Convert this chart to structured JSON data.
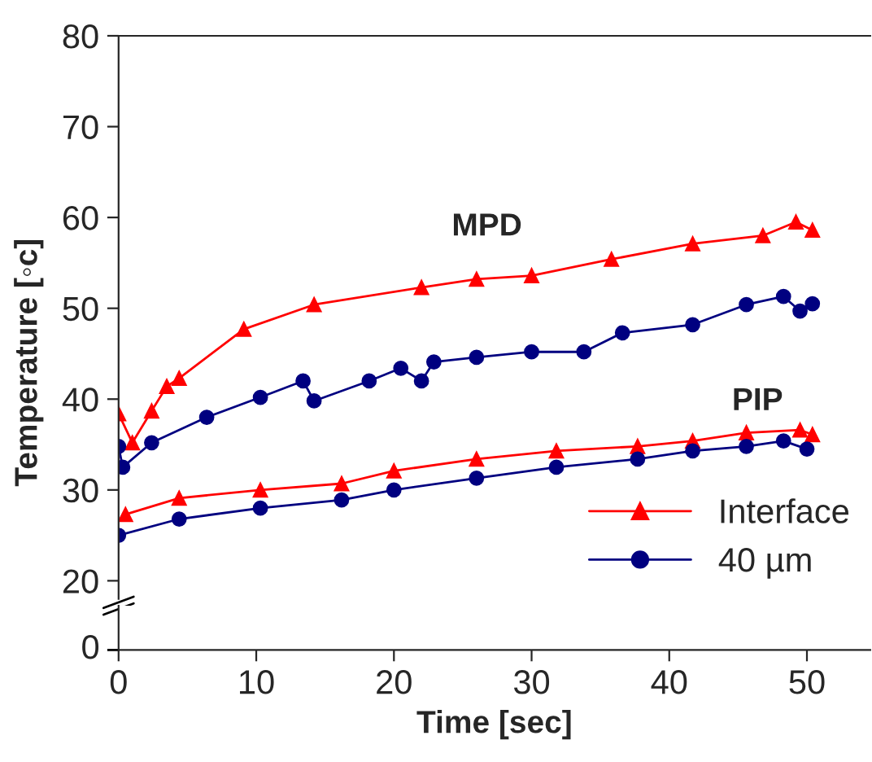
{
  "chart_data": {
    "type": "line",
    "xlabel": "Time [sec]",
    "ylabel": "Temperature [◦c]",
    "xlim": [
      0,
      54.6
    ],
    "xticks": [
      0,
      10,
      20,
      30,
      40,
      50
    ],
    "ylim": [
      18,
      80
    ],
    "yticks": [
      20,
      30,
      40,
      50,
      60,
      70,
      80
    ],
    "legend": "bottom right",
    "annotations": [
      "MPD",
      "PIP",
      "0"
    ],
    "series": [
      {
        "name": "Interface",
        "color": "#ff0000",
        "marker": "triangle",
        "x": [
          0,
          1,
          2.4,
          3.5,
          4.4,
          9.1,
          14.2,
          22,
          26,
          30,
          35.8,
          41.7,
          46.8,
          49.2,
          50.4
        ],
        "values": [
          38.4,
          35.2,
          38.7,
          41.4,
          42.3,
          47.7,
          50.4,
          52.3,
          53.2,
          53.6,
          55.4,
          57.1,
          58,
          59.5,
          58.6
        ]
      },
      {
        "name": "40 µm",
        "color": "#000080",
        "marker": "circle",
        "x": [
          0,
          0.3,
          2.4,
          6.4,
          10.3,
          13.4,
          14.2,
          18.2,
          20.5,
          22,
          22.9,
          26,
          30,
          33.8,
          36.6,
          41.7,
          45.6,
          48.3,
          49.5,
          50.4
        ],
        "values": [
          34.8,
          32.5,
          35.2,
          38,
          40.2,
          42,
          39.8,
          42,
          43.4,
          42,
          44.1,
          44.6,
          45.2,
          45.2,
          47.3,
          48.2,
          50.4,
          51.3,
          49.7,
          50.5
        ]
      },
      {
        "color": "#ff0000",
        "marker": "triangle",
        "x": [
          0.5,
          4.4,
          10.3,
          16.2,
          20,
          26,
          31.8,
          37.7,
          41.7,
          45.6,
          49.5,
          50.4
        ],
        "values": [
          27.3,
          29.1,
          30,
          30.7,
          32.1,
          33.4,
          34.3,
          34.8,
          35.4,
          36.3,
          36.6,
          36.1
        ]
      },
      {
        "color": "#000080",
        "marker": "circle",
        "x": [
          0,
          4.4,
          10.3,
          16.2,
          20,
          26,
          31.8,
          37.7,
          41.7,
          45.6,
          48.3,
          50
        ],
        "values": [
          25,
          26.8,
          28,
          28.9,
          30,
          31.3,
          32.5,
          33.4,
          34.3,
          34.8,
          35.4,
          34.5
        ]
      }
    ]
  }
}
